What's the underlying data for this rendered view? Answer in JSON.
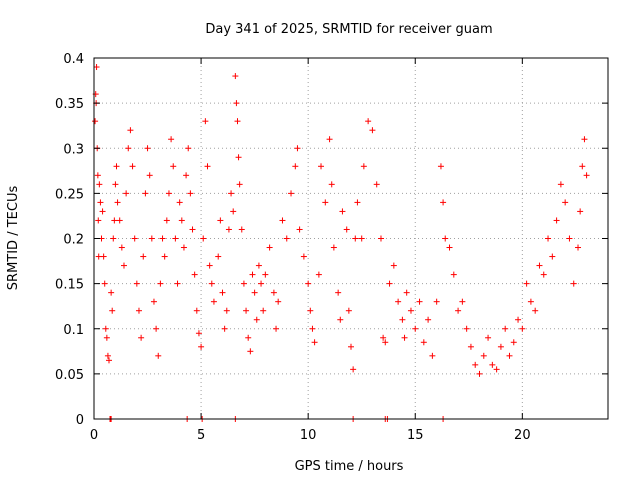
{
  "chart_data": {
    "type": "scatter",
    "title": "Day 341 of 2025, SRMTID for receiver guam",
    "xlabel": "GPS time / hours",
    "ylabel": "SRMTID / TECUs",
    "xlim": [
      0,
      24
    ],
    "ylim": [
      0,
      0.4
    ],
    "grid": true,
    "marker": "plus",
    "color": "#ff0000",
    "x_ticks": [
      {
        "value": 0,
        "label": "0"
      },
      {
        "value": 5,
        "label": "5"
      },
      {
        "value": 10,
        "label": "10"
      },
      {
        "value": 15,
        "label": "15"
      },
      {
        "value": 20,
        "label": "20"
      }
    ],
    "y_ticks": [
      {
        "value": 0,
        "label": "0"
      },
      {
        "value": 0.05,
        "label": "0.05"
      },
      {
        "value": 0.1,
        "label": "0.1"
      },
      {
        "value": 0.15,
        "label": "0.15"
      },
      {
        "value": 0.2,
        "label": "0.2"
      },
      {
        "value": 0.25,
        "label": "0.25"
      },
      {
        "value": 0.3,
        "label": "0.3"
      },
      {
        "value": 0.35,
        "label": "0.35"
      },
      {
        "value": 0.4,
        "label": "0.4"
      }
    ],
    "series": [
      {
        "name": "SRMTID",
        "points": [
          [
            0.05,
            0.33
          ],
          [
            0.08,
            0.36
          ],
          [
            0.1,
            0.35
          ],
          [
            0.12,
            0.39
          ],
          [
            0.15,
            0.3
          ],
          [
            0.18,
            0.27
          ],
          [
            0.2,
            0.22
          ],
          [
            0.22,
            0.18
          ],
          [
            0.25,
            0.26
          ],
          [
            0.3,
            0.24
          ],
          [
            0.35,
            0.2
          ],
          [
            0.4,
            0.23
          ],
          [
            0.45,
            0.18
          ],
          [
            0.5,
            0.15
          ],
          [
            0.55,
            0.1
          ],
          [
            0.6,
            0.09
          ],
          [
            0.65,
            0.07
          ],
          [
            0.7,
            0.065
          ],
          [
            0.75,
            0.0
          ],
          [
            0.78,
            0.0
          ],
          [
            0.8,
            0.14
          ],
          [
            0.85,
            0.12
          ],
          [
            0.9,
            0.2
          ],
          [
            0.95,
            0.22
          ],
          [
            1.0,
            0.26
          ],
          [
            1.05,
            0.28
          ],
          [
            1.1,
            0.24
          ],
          [
            1.2,
            0.22
          ],
          [
            1.3,
            0.19
          ],
          [
            1.4,
            0.17
          ],
          [
            1.5,
            0.25
          ],
          [
            1.6,
            0.3
          ],
          [
            1.7,
            0.32
          ],
          [
            1.8,
            0.28
          ],
          [
            1.9,
            0.2
          ],
          [
            2.0,
            0.15
          ],
          [
            2.1,
            0.12
          ],
          [
            2.2,
            0.09
          ],
          [
            2.3,
            0.18
          ],
          [
            2.4,
            0.25
          ],
          [
            2.5,
            0.3
          ],
          [
            2.6,
            0.27
          ],
          [
            2.7,
            0.2
          ],
          [
            2.8,
            0.13
          ],
          [
            2.9,
            0.1
          ],
          [
            3.0,
            0.07
          ],
          [
            3.1,
            0.15
          ],
          [
            3.2,
            0.2
          ],
          [
            3.3,
            0.18
          ],
          [
            3.4,
            0.22
          ],
          [
            3.5,
            0.25
          ],
          [
            3.6,
            0.31
          ],
          [
            3.7,
            0.28
          ],
          [
            3.8,
            0.2
          ],
          [
            3.9,
            0.15
          ],
          [
            4.0,
            0.24
          ],
          [
            4.1,
            0.22
          ],
          [
            4.2,
            0.19
          ],
          [
            4.3,
            0.27
          ],
          [
            4.4,
            0.3
          ],
          [
            4.5,
            0.25
          ],
          [
            4.6,
            0.21
          ],
          [
            4.7,
            0.16
          ],
          [
            4.8,
            0.12
          ],
          [
            4.9,
            0.095
          ],
          [
            5.0,
            0.08
          ],
          [
            5.1,
            0.2
          ],
          [
            5.2,
            0.33
          ],
          [
            5.3,
            0.28
          ],
          [
            5.4,
            0.17
          ],
          [
            5.5,
            0.15
          ],
          [
            5.6,
            0.13
          ],
          [
            5.8,
            0.18
          ],
          [
            5.9,
            0.22
          ],
          [
            6.0,
            0.14
          ],
          [
            6.1,
            0.1
          ],
          [
            6.2,
            0.12
          ],
          [
            6.3,
            0.21
          ],
          [
            6.4,
            0.25
          ],
          [
            6.5,
            0.23
          ],
          [
            6.6,
            0.38
          ],
          [
            6.65,
            0.35
          ],
          [
            6.7,
            0.33
          ],
          [
            6.75,
            0.29
          ],
          [
            6.8,
            0.26
          ],
          [
            6.9,
            0.21
          ],
          [
            7.0,
            0.15
          ],
          [
            7.1,
            0.12
          ],
          [
            7.2,
            0.09
          ],
          [
            7.3,
            0.075
          ],
          [
            7.4,
            0.16
          ],
          [
            7.5,
            0.14
          ],
          [
            7.6,
            0.11
          ],
          [
            7.7,
            0.17
          ],
          [
            7.8,
            0.15
          ],
          [
            7.9,
            0.12
          ],
          [
            8.0,
            0.16
          ],
          [
            8.2,
            0.19
          ],
          [
            8.4,
            0.14
          ],
          [
            8.5,
            0.1
          ],
          [
            8.6,
            0.13
          ],
          [
            8.8,
            0.22
          ],
          [
            9.0,
            0.2
          ],
          [
            9.2,
            0.25
          ],
          [
            9.4,
            0.28
          ],
          [
            9.5,
            0.3
          ],
          [
            9.6,
            0.21
          ],
          [
            9.8,
            0.18
          ],
          [
            10.0,
            0.15
          ],
          [
            10.1,
            0.12
          ],
          [
            10.2,
            0.1
          ],
          [
            10.3,
            0.085
          ],
          [
            10.5,
            0.16
          ],
          [
            10.6,
            0.28
          ],
          [
            10.8,
            0.24
          ],
          [
            11.0,
            0.31
          ],
          [
            11.1,
            0.26
          ],
          [
            11.2,
            0.19
          ],
          [
            11.4,
            0.14
          ],
          [
            11.5,
            0.11
          ],
          [
            11.6,
            0.23
          ],
          [
            11.8,
            0.21
          ],
          [
            11.9,
            0.12
          ],
          [
            12.0,
            0.08
          ],
          [
            12.1,
            0.055
          ],
          [
            12.2,
            0.2
          ],
          [
            12.3,
            0.24
          ],
          [
            12.5,
            0.2
          ],
          [
            12.6,
            0.28
          ],
          [
            12.8,
            0.33
          ],
          [
            13.0,
            0.32
          ],
          [
            13.2,
            0.26
          ],
          [
            13.4,
            0.2
          ],
          [
            13.5,
            0.09
          ],
          [
            13.6,
            0.085
          ],
          [
            13.8,
            0.15
          ],
          [
            14.0,
            0.17
          ],
          [
            14.2,
            0.13
          ],
          [
            14.4,
            0.11
          ],
          [
            14.5,
            0.09
          ],
          [
            14.6,
            0.14
          ],
          [
            14.8,
            0.12
          ],
          [
            15.0,
            0.1
          ],
          [
            15.2,
            0.13
          ],
          [
            15.4,
            0.085
          ],
          [
            15.6,
            0.11
          ],
          [
            15.8,
            0.07
          ],
          [
            16.0,
            0.13
          ],
          [
            16.2,
            0.28
          ],
          [
            16.3,
            0.24
          ],
          [
            16.4,
            0.2
          ],
          [
            16.6,
            0.19
          ],
          [
            16.8,
            0.16
          ],
          [
            17.0,
            0.12
          ],
          [
            17.2,
            0.13
          ],
          [
            17.4,
            0.1
          ],
          [
            17.6,
            0.08
          ],
          [
            17.8,
            0.06
          ],
          [
            18.0,
            0.05
          ],
          [
            18.2,
            0.07
          ],
          [
            18.4,
            0.09
          ],
          [
            18.6,
            0.06
          ],
          [
            18.8,
            0.055
          ],
          [
            19.0,
            0.08
          ],
          [
            19.2,
            0.1
          ],
          [
            19.4,
            0.07
          ],
          [
            19.6,
            0.085
          ],
          [
            19.8,
            0.11
          ],
          [
            20.0,
            0.1
          ],
          [
            20.2,
            0.15
          ],
          [
            20.4,
            0.13
          ],
          [
            20.6,
            0.12
          ],
          [
            20.8,
            0.17
          ],
          [
            21.0,
            0.16
          ],
          [
            21.2,
            0.2
          ],
          [
            21.4,
            0.18
          ],
          [
            21.6,
            0.22
          ],
          [
            21.8,
            0.26
          ],
          [
            22.0,
            0.24
          ],
          [
            22.2,
            0.2
          ],
          [
            22.4,
            0.15
          ],
          [
            22.6,
            0.19
          ],
          [
            22.7,
            0.23
          ],
          [
            22.8,
            0.28
          ],
          [
            22.9,
            0.31
          ],
          [
            23.0,
            0.27
          ]
        ],
        "zero_points_x": [
          0.75,
          0.8,
          4.35,
          5.05,
          6.6,
          12.1,
          13.6,
          13.7,
          16.3
        ]
      }
    ]
  }
}
